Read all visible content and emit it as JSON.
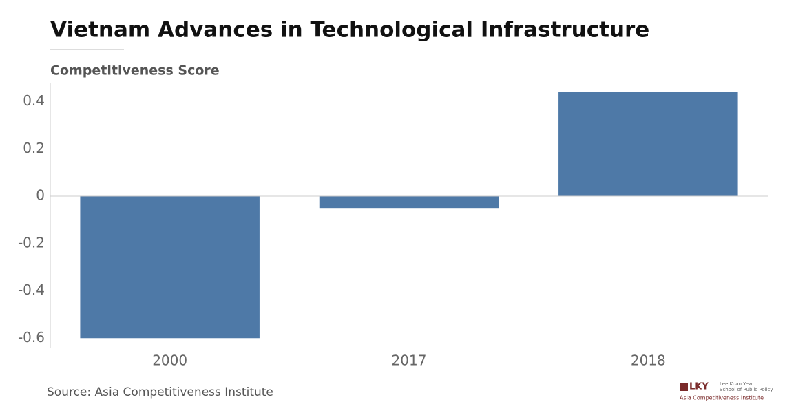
{
  "chart_data": {
    "type": "bar",
    "title": "Vietnam Advances in Technological Infrastructure",
    "subtitle": "Competitiveness Score",
    "categories": [
      "2000",
      "2017",
      "2018"
    ],
    "values": [
      -0.6,
      -0.05,
      0.44
    ],
    "color": "#4e79a7",
    "ylim": [
      -0.64,
      0.48
    ],
    "yticks": [
      -0.6,
      -0.4,
      -0.2,
      0,
      0.2,
      0.4
    ],
    "grid": false,
    "source": "Source: Asia Competitiveness Institute",
    "logo": {
      "mark": "LKY",
      "line1": "Lee Kuan Yew",
      "line2": "School of Public Policy",
      "line3": "Asia Competitiveness Institute"
    }
  }
}
